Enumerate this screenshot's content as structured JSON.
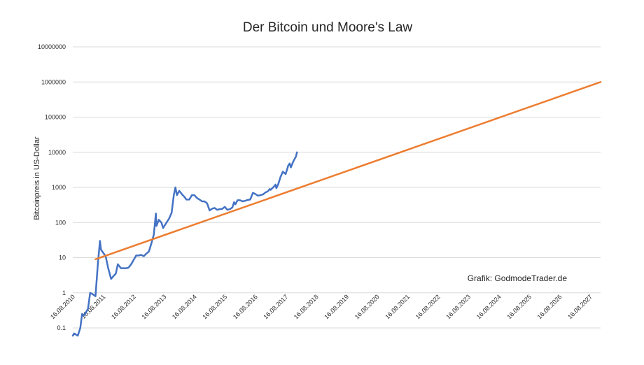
{
  "chart_data": {
    "type": "line",
    "title": "Der Bitcoin und Moore's Law",
    "xlabel": "",
    "ylabel": "Bitcoinpreis in US-Dollar",
    "y_scale": "log",
    "ylim": [
      0.1,
      10000000
    ],
    "y_ticks": [
      "0.1",
      "1",
      "10",
      "100",
      "1000",
      "10000",
      "100000",
      "1000000",
      "10000000"
    ],
    "x_ticks": [
      "16.08.2010",
      "16.08.2011",
      "16.08.2012",
      "16.08.2013",
      "16.08.2014",
      "16.08.2015",
      "16.08.2016",
      "16.08.2017",
      "16.08.2018",
      "16.08.2019",
      "16.08.2020",
      "16.08.2021",
      "16.08.2022",
      "16.08.2023",
      "16.08.2024",
      "16.08.2025",
      "16.08.2026",
      "16.08.2027"
    ],
    "grid": true,
    "annotation": "Grafik: GodmodeTrader.de",
    "series": [
      {
        "color": "#4472c4",
        "x": [
          "2010-07-17",
          "2010-08-01",
          "2010-09-15",
          "2010-10-15",
          "2010-11-06",
          "2010-12-01",
          "2011-01-15",
          "2011-02-10",
          "2011-03-15",
          "2011-04-15",
          "2011-05-15",
          "2011-06-08",
          "2011-06-20",
          "2011-07-15",
          "2011-08-15",
          "2011-09-15",
          "2011-10-20",
          "2011-11-18",
          "2011-12-15",
          "2012-01-08",
          "2012-02-15",
          "2012-03-15",
          "2012-04-15",
          "2012-05-15",
          "2012-06-15",
          "2012-07-15",
          "2012-08-16",
          "2012-09-15",
          "2012-10-15",
          "2012-11-15",
          "2012-12-15",
          "2013-01-15",
          "2013-02-15",
          "2013-03-15",
          "2013-04-09",
          "2013-04-16",
          "2013-05-15",
          "2013-06-15",
          "2013-07-05",
          "2013-08-15",
          "2013-09-15",
          "2013-10-15",
          "2013-11-10",
          "2013-11-30",
          "2013-12-18",
          "2014-01-15",
          "2014-02-25",
          "2014-03-15",
          "2014-04-10",
          "2014-05-15",
          "2014-06-15",
          "2014-07-15",
          "2014-08-15",
          "2014-09-15",
          "2014-10-15",
          "2014-11-15",
          "2014-12-15",
          "2015-01-14",
          "2015-02-15",
          "2015-03-15",
          "2015-04-15",
          "2015-05-15",
          "2015-06-15",
          "2015-07-15",
          "2015-08-15",
          "2015-09-15",
          "2015-10-15",
          "2015-11-04",
          "2015-11-20",
          "2015-12-15",
          "2016-01-15",
          "2016-02-15",
          "2016-03-15",
          "2016-04-15",
          "2016-05-15",
          "2016-06-17",
          "2016-07-15",
          "2016-08-15",
          "2016-09-15",
          "2016-10-15",
          "2016-11-15",
          "2016-12-15",
          "2017-01-05",
          "2017-01-15",
          "2017-02-15",
          "2017-03-15",
          "2017-03-25",
          "2017-04-15",
          "2017-05-15",
          "2017-06-11",
          "2017-07-15",
          "2017-08-15",
          "2017-09-01",
          "2017-09-15",
          "2017-10-15",
          "2017-11-15",
          "2017-11-28"
        ],
        "values": [
          0.06,
          0.07,
          0.06,
          0.1,
          0.25,
          0.23,
          0.35,
          1.0,
          0.9,
          0.8,
          7,
          30,
          17,
          14,
          11,
          5,
          2.5,
          3,
          3.5,
          6.5,
          5,
          5,
          5,
          5.2,
          6.4,
          8.5,
          11.5,
          11.5,
          12,
          11,
          13,
          15,
          26,
          45,
          180,
          80,
          120,
          100,
          70,
          100,
          130,
          190,
          600,
          1000,
          600,
          800,
          600,
          550,
          450,
          450,
          600,
          600,
          500,
          450,
          400,
          400,
          350,
          220,
          250,
          260,
          230,
          240,
          245,
          280,
          230,
          240,
          270,
          380,
          330,
          430,
          430,
          400,
          415,
          440,
          450,
          700,
          650,
          580,
          600,
          630,
          720,
          780,
          900,
          850,
          1000,
          1200,
          950,
          1200,
          2000,
          2800,
          2400,
          4200,
          4800,
          3700,
          5500,
          7500,
          10000
        ]
      },
      {
        "color": "#ed7d31",
        "x": [
          "2011-04-15",
          "2027-11-20"
        ],
        "values": [
          9,
          1000000
        ]
      }
    ]
  }
}
